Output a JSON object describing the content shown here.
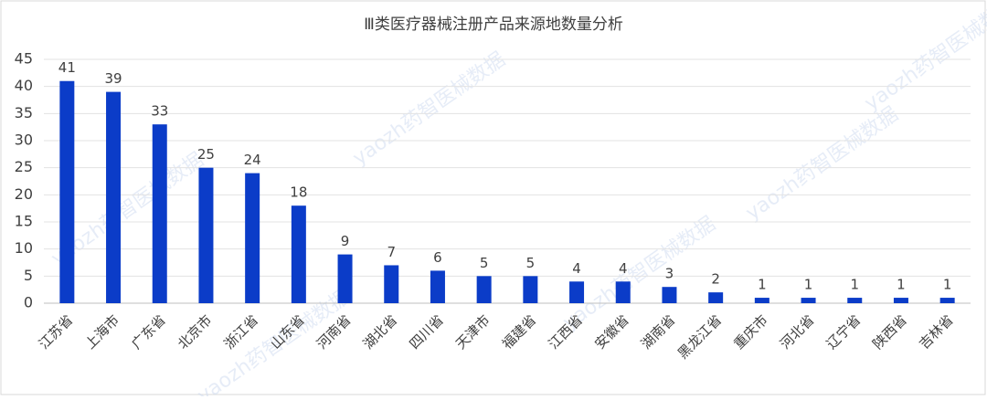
{
  "chart_data": {
    "type": "bar",
    "title": "Ⅲ类医疗器械注册产品来源地数量分析",
    "categories": [
      "江苏省",
      "上海市",
      "广东省",
      "北京市",
      "浙江省",
      "山东省",
      "河南省",
      "湖北省",
      "四川省",
      "天津市",
      "福建省",
      "江西省",
      "安徽省",
      "湖南省",
      "黑龙江省",
      "重庆市",
      "河北省",
      "辽宁省",
      "陕西省",
      "吉林省"
    ],
    "values": [
      41,
      39,
      33,
      25,
      24,
      18,
      9,
      7,
      6,
      5,
      5,
      4,
      4,
      3,
      2,
      1,
      1,
      1,
      1,
      1
    ],
    "color": "#0b3cc8",
    "ylim": [
      0,
      45
    ],
    "yticks": [
      0,
      5,
      10,
      15,
      20,
      25,
      30,
      35,
      40,
      45
    ],
    "grid": true,
    "watermark": "yaozh药智医械数据"
  }
}
